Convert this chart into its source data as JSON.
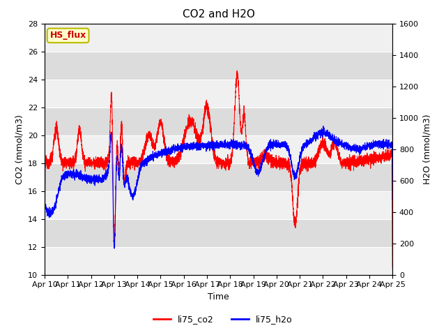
{
  "title": "CO2 and H2O",
  "xlabel": "Time",
  "ylabel_left": "CO2 (mmol/m3)",
  "ylabel_right": "H2O (mmol/m3)",
  "ylim_left": [
    10,
    28
  ],
  "ylim_right": [
    0,
    1600
  ],
  "yticks_left": [
    10,
    12,
    14,
    16,
    18,
    20,
    22,
    24,
    26,
    28
  ],
  "yticks_right": [
    0,
    200,
    400,
    600,
    800,
    1000,
    1200,
    1400,
    1600
  ],
  "color_co2": "red",
  "color_h2o": "blue",
  "legend_labels": [
    "li75_co2",
    "li75_h2o"
  ],
  "annotation_text": "HS_flux",
  "annotation_facecolor": "#ffffcc",
  "annotation_edgecolor": "#bbbb00",
  "annotation_textcolor": "#cc0000",
  "bg_light": "#f0f0f0",
  "bg_dark": "#dcdcdc",
  "title_fontsize": 11,
  "axis_label_fontsize": 9,
  "tick_label_fontsize": 8,
  "legend_fontsize": 9
}
